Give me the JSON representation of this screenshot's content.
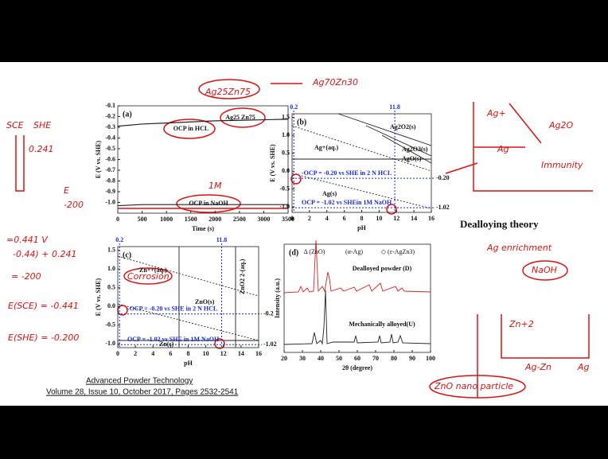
{
  "slide": {
    "heading": "Dealloying theory",
    "citation": {
      "journal": "Advanced Powder Technology",
      "details": "Volume 28, Issue 10, October 2017, Pages 2532-2541"
    },
    "handwriting": [
      "Ag25Zn75",
      "Ag70Zn30",
      "SCE",
      "SHE",
      "0.241",
      "E",
      "-200",
      "=0.441 V",
      "-0.44) + 0.241",
      "= -200",
      "E(SCE) = -0.441",
      "E(SHE) = -0.200",
      "1M",
      "Corrosion",
      "Ag+",
      "Ag2O",
      "Ag",
      "Immunity",
      "Ag enrichment",
      "NaOH",
      "Zn+2",
      "Ag-Zn",
      "Ag",
      "ZnO nano particle"
    ]
  },
  "chart_data": [
    {
      "type": "line",
      "panel": "(a)",
      "x_label": "Time (s)",
      "y_label": "E (V vs. SHE)",
      "annotations": [
        "Ag25 Zn75",
        "OCP in HCL",
        "OCP in NaOH"
      ],
      "x": [
        0,
        500,
        1000,
        1500,
        2000,
        2500,
        3000,
        3500
      ],
      "series": [
        {
          "name": "OCP in HCL",
          "color": "#222",
          "values": [
            -0.29,
            -0.27,
            -0.26,
            -0.25,
            -0.24,
            -0.235,
            -0.23,
            -0.225
          ]
        },
        {
          "name": "OCP in NaOH",
          "color": "#222",
          "values": [
            -1.03,
            -1.02,
            -1.02,
            -1.02,
            -1.02,
            -1.02,
            -1.02,
            -1.02
          ]
        }
      ],
      "xlim": [
        0,
        3500
      ],
      "xticks": [
        0,
        500,
        1000,
        1500,
        2000,
        2500,
        3000,
        3500
      ],
      "ylim": [
        -1.1,
        -0.1
      ],
      "yticks": [
        -0.1,
        -0.2,
        -0.3,
        -0.4,
        -0.5,
        -0.6,
        -0.7,
        -0.8,
        -0.9,
        {
          "value": -1.0,
          "label": "-1.0"
        }
      ]
    },
    {
      "type": "pourbaix",
      "panel": "(b)",
      "x_label": "pH",
      "y_label": "E (V vs. SHE)",
      "region_labels": [
        "Ag2O2(s)",
        "Ag2O3(s)",
        "AgO(s)",
        "Ag+(aq.)",
        "Ag(s)"
      ],
      "notes": [
        "-OCP = -0.20 vs SHE in 2 N HCL",
        "OCP = -1.02 vs SHEin 1M NaOH"
      ],
      "ph_marks": [
        {
          "value": 0.2,
          "label": "0.2"
        },
        {
          "value": 11.8,
          "label": "11.8"
        }
      ],
      "ocp_lines": [
        {
          "value": -0.2,
          "label": "-0.20"
        },
        {
          "value": -1.02,
          "label": "-1.02"
        }
      ],
      "xlim": [
        0,
        16
      ],
      "xticks": [
        0,
        2,
        4,
        6,
        8,
        10,
        12,
        14,
        16
      ],
      "ylim": [
        -1.15,
        1.6
      ],
      "yticks": [
        1.5,
        {
          "value": 1.0,
          "label": "1.0"
        },
        0.5,
        {
          "value": 0.0,
          "label": "0.0"
        },
        -0.5,
        {
          "value": -1.0,
          "label": "-1.0"
        }
      ]
    },
    {
      "type": "pourbaix",
      "panel": "(c)",
      "x_label": "pH",
      "y_label": "E (V vs. SHE)",
      "region_labels": [
        "Zn++(aq.)",
        "ZnO(s)",
        "ZnO2 2-(aq.)",
        "Zn(s)"
      ],
      "notes": [
        "-OCP = -0.20 vs SHE in 2 N HCL",
        "OCP = -1.02 vs SHE in 1M NaOH"
      ],
      "ph_marks": [
        {
          "value": 0.2,
          "label": "0.2"
        },
        {
          "value": 11.8,
          "label": "11.8"
        }
      ],
      "ocp_lines": [
        {
          "value": -0.2,
          "label": "-0.2"
        },
        {
          "value": -1.02,
          "label": "-1.02"
        }
      ],
      "xlim": [
        0,
        16
      ],
      "xticks": [
        0,
        2,
        4,
        6,
        8,
        10,
        12,
        14,
        16
      ],
      "ylim": [
        -1.1,
        1.6
      ],
      "yticks": [
        1.5,
        {
          "value": 1.0,
          "label": "1.0"
        },
        0.5,
        {
          "value": 0.0,
          "label": "0.0"
        },
        -0.5,
        {
          "value": -1.0,
          "label": "-1.0"
        }
      ]
    },
    {
      "type": "xrd",
      "panel": "(d)",
      "x_label": "2θ (degree)",
      "y_label": "Intensity (a.u.)",
      "legend_items": [
        "Δ (ZnO)",
        "(α-Ag)",
        "◇ (ε-AgZn3)"
      ],
      "trace_labels": [
        "Dealloyed powder (D)",
        "Mechanically alloyed(U)"
      ],
      "xlim": [
        20,
        100
      ],
      "xticks": [
        20,
        30,
        40,
        50,
        60,
        70,
        80,
        90,
        100
      ]
    }
  ]
}
